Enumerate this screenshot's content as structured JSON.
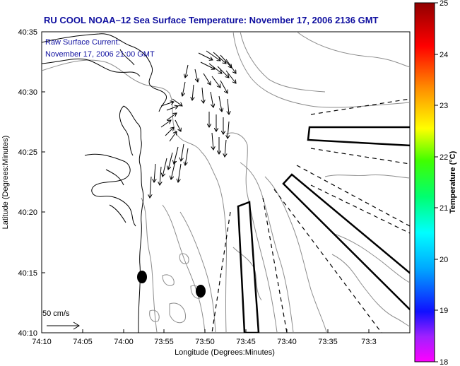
{
  "title": "RU COOL  NOAA–12  Sea Surface Temperature:  November 17, 2006 2136 GMT",
  "annotation": {
    "line1": "Raw Surface Current:",
    "line2": "November 17, 2006 21:00 GMT"
  },
  "scale_label": "50 cm/s",
  "x_axis": {
    "label": "Longitude (Degrees:Minutes)",
    "ticks": [
      "74:10",
      "74:05",
      "74:00",
      "73:55",
      "73:50",
      "73:45",
      "73:40",
      "73:35",
      "73:3"
    ]
  },
  "y_axis": {
    "label": "Latitude (Degrees:Minutes)",
    "ticks": [
      "40:35",
      "40:30",
      "40:25",
      "40:20",
      "40:15",
      "40:10"
    ]
  },
  "colorbar": {
    "label": "Temperature (°C)",
    "ticks": [
      "25",
      "24",
      "23",
      "22",
      "21",
      "20",
      "19",
      "18"
    ],
    "range": [
      18,
      25
    ],
    "colors": [
      "#ff00ff",
      "#1010ff",
      "#00b0ff",
      "#00ffff",
      "#00ff80",
      "#40ff00",
      "#ffff00",
      "#ff9000",
      "#ff0000",
      "#900000"
    ]
  },
  "colors": {
    "title": "#1010a0",
    "coast": "#000000",
    "bathymetry": "#8c8c8c"
  }
}
